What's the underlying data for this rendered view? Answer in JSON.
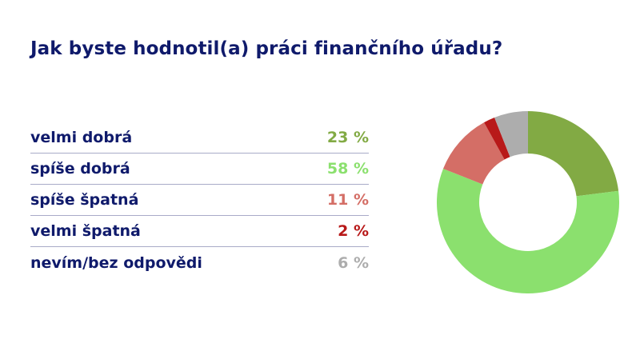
{
  "title": "Jak byste hodnotil(a) práci finančního úřadu?",
  "legend": [
    {
      "label": "velmi dobrá",
      "value": "23 %",
      "color": "#82aa44"
    },
    {
      "label": "spíše dobrá",
      "value": "58 %",
      "color": "#8be06e"
    },
    {
      "label": "spíše špatná",
      "value": "11 %",
      "color": "#d46e66"
    },
    {
      "label": "velmi špatná",
      "value": "2 %",
      "color": "#b81919"
    },
    {
      "label": "nevím/bez odpovědi",
      "value": "6 %",
      "color": "#adadad"
    }
  ],
  "chart_data": {
    "type": "pie",
    "title": "Jak byste hodnotil(a) práci finančního úřadu?",
    "categories": [
      "velmi dobrá",
      "spíše dobrá",
      "spíše špatná",
      "velmi špatná",
      "nevím/bez odpovědi"
    ],
    "values": [
      23,
      58,
      11,
      2,
      6
    ],
    "unit": "%",
    "colors": [
      "#82aa44",
      "#8be06e",
      "#d46e66",
      "#b81919",
      "#adadad"
    ],
    "donut": true,
    "legend_position": "left"
  }
}
